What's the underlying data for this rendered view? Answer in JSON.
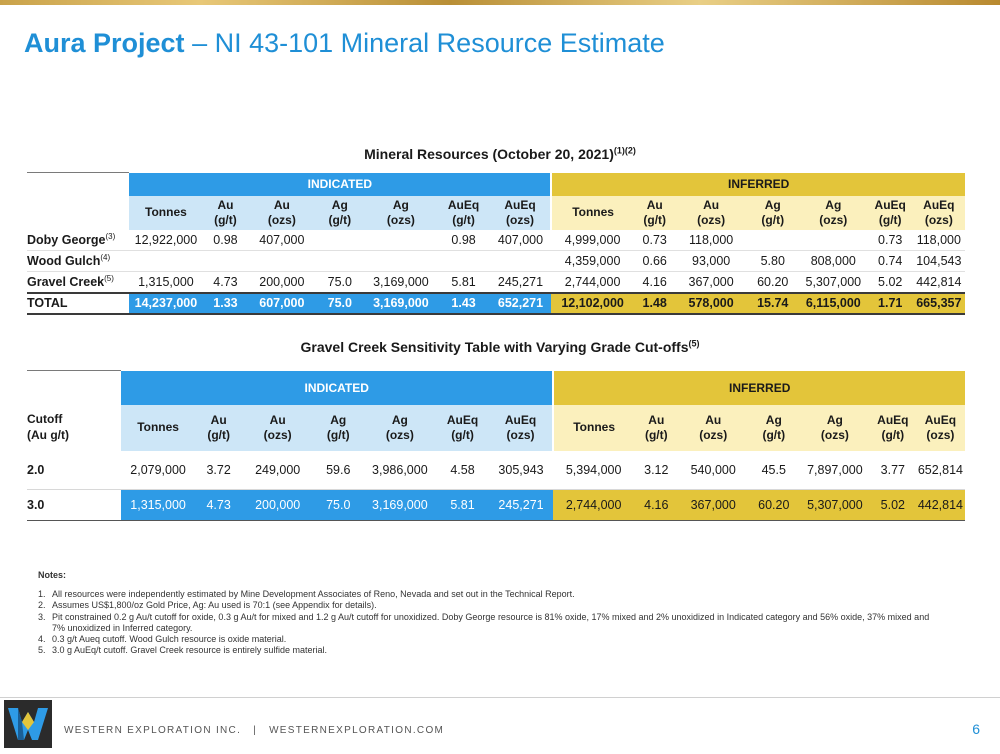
{
  "header": {
    "title_bold": "Aura Project",
    "title_rest": " – NI 43-101 Mineral Resource Estimate"
  },
  "table1": {
    "title": "Mineral Resources (October 20, 2021)",
    "title_sup": "(1)(2)",
    "group_indicated": "INDICATED",
    "group_inferred": "INFERRED",
    "columns": [
      [
        "Tonnes",
        ""
      ],
      [
        "Au",
        "(g/t)"
      ],
      [
        "Au",
        "(ozs)"
      ],
      [
        "Ag",
        "(g/t)"
      ],
      [
        "Ag",
        "(ozs)"
      ],
      [
        "AuEq",
        "(g/t)"
      ],
      [
        "AuEq",
        "(ozs)"
      ]
    ],
    "rows": [
      {
        "name": "Doby George",
        "sup": "(3)",
        "ind": [
          "12,922,000",
          "0.98",
          "407,000",
          "",
          "",
          "0.98",
          "407,000"
        ],
        "inf": [
          "4,999,000",
          "0.73",
          "118,000",
          "",
          "",
          "0.73",
          "118,000"
        ]
      },
      {
        "name": "Wood Gulch",
        "sup": "(4)",
        "ind": [
          "",
          "",
          "",
          "",
          "",
          "",
          ""
        ],
        "inf": [
          "4,359,000",
          "0.66",
          "93,000",
          "5.80",
          "808,000",
          "0.74",
          "104,543"
        ]
      },
      {
        "name": "Gravel Creek",
        "sup": "(5)",
        "ind": [
          "1,315,000",
          "4.73",
          "200,000",
          "75.0",
          "3,169,000",
          "5.81",
          "245,271"
        ],
        "inf": [
          "2,744,000",
          "4.16",
          "367,000",
          "60.20",
          "5,307,000",
          "5.02",
          "442,814"
        ]
      }
    ],
    "total": {
      "name": "TOTAL",
      "ind": [
        "14,237,000",
        "1.33",
        "607,000",
        "75.0",
        "3,169,000",
        "1.43",
        "652,271"
      ],
      "inf": [
        "12,102,000",
        "1.48",
        "578,000",
        "15.74",
        "6,115,000",
        "1.71",
        "665,357"
      ]
    }
  },
  "table2": {
    "title": "Gravel Creek Sensitivity Table with Varying Grade Cut-offs",
    "title_sup": "(5)",
    "group_indicated": "INDICATED",
    "group_inferred": "INFERRED",
    "cutoff_label_1": "Cutoff",
    "cutoff_label_2": "(Au g/t)",
    "rows": [
      {
        "cutoff": "2.0",
        "ind": [
          "2,079,000",
          "3.72",
          "249,000",
          "59.6",
          "3,986,000",
          "4.58",
          "305,943"
        ],
        "inf": [
          "5,394,000",
          "3.12",
          "540,000",
          "45.5",
          "7,897,000",
          "3.77",
          "652,814"
        ]
      },
      {
        "cutoff": "3.0",
        "ind": [
          "1,315,000",
          "4.73",
          "200,000",
          "75.0",
          "3,169,000",
          "5.81",
          "245,271"
        ],
        "inf": [
          "2,744,000",
          "4.16",
          "367,000",
          "60.20",
          "5,307,000",
          "5.02",
          "442,814"
        ]
      }
    ]
  },
  "notes": {
    "heading": "Notes:",
    "items": [
      {
        "num": "1.",
        "text": "All resources were independently estimated by Mine Development Associates of Reno, Nevada and set out in the Technical Report."
      },
      {
        "num": "2.",
        "text": "Assumes US$1,800/oz Gold Price, Ag: Au used is 70:1 (see Appendix for details)."
      },
      {
        "num": "3.",
        "text": "Pit constrained 0.2 g Au/t cutoff for oxide, 0.3 g Au/t for mixed and 1.2 g Au/t cutoff for unoxidized. Doby George resource is 81% oxide, 17% mixed and 2% unoxidized in Indicated category and 56% oxide, 37% mixed and 7% unoxidized in Inferred category."
      },
      {
        "num": "4.",
        "text": "0.3 g/t Aueq cutoff. Wood Gulch resource is oxide material."
      },
      {
        "num": "5.",
        "text": "3.0 g AuEq/t cutoff. Gravel Creek resource is entirely sulfide material."
      }
    ]
  },
  "footer": {
    "company": "WESTERN EXPLORATION INC.",
    "separator": "|",
    "website": "WESTERNEXPLORATION.COM",
    "page": "6"
  },
  "colors": {
    "indicated": "#2e9be6",
    "indicated_light": "#cde6f7",
    "inferred": "#e3c53a",
    "inferred_light": "#fbf0bd",
    "title_blue": "#1f8fd6"
  }
}
